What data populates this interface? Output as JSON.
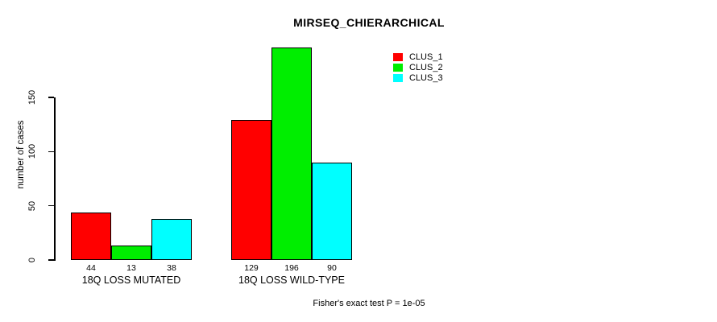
{
  "chart_data": {
    "type": "bar",
    "title": "MIRSEQ_CHIERARCHICAL",
    "xlabel": "",
    "ylabel": "number of cases",
    "categories": [
      "18Q LOSS MUTATED",
      "18Q LOSS WILD-TYPE"
    ],
    "series": [
      {
        "name": "CLUS_1",
        "color": "#FF0000",
        "values": [
          44,
          129
        ]
      },
      {
        "name": "CLUS_2",
        "color": "#00EE00",
        "values": [
          13,
          196
        ]
      },
      {
        "name": "CLUS_3",
        "color": "#00FFFF",
        "values": [
          38,
          90
        ]
      }
    ],
    "yticks": [
      0,
      50,
      100,
      150
    ],
    "ylim": [
      0,
      150
    ],
    "grid": false,
    "bar_value_labels_shown": true,
    "legend_position": "top-right",
    "annotation": "Fisher's exact test P = 1e-05"
  },
  "colors": {
    "background": "#FFFFFF",
    "axis": "#000000",
    "text": "#000000",
    "bar_border": "#000000"
  }
}
